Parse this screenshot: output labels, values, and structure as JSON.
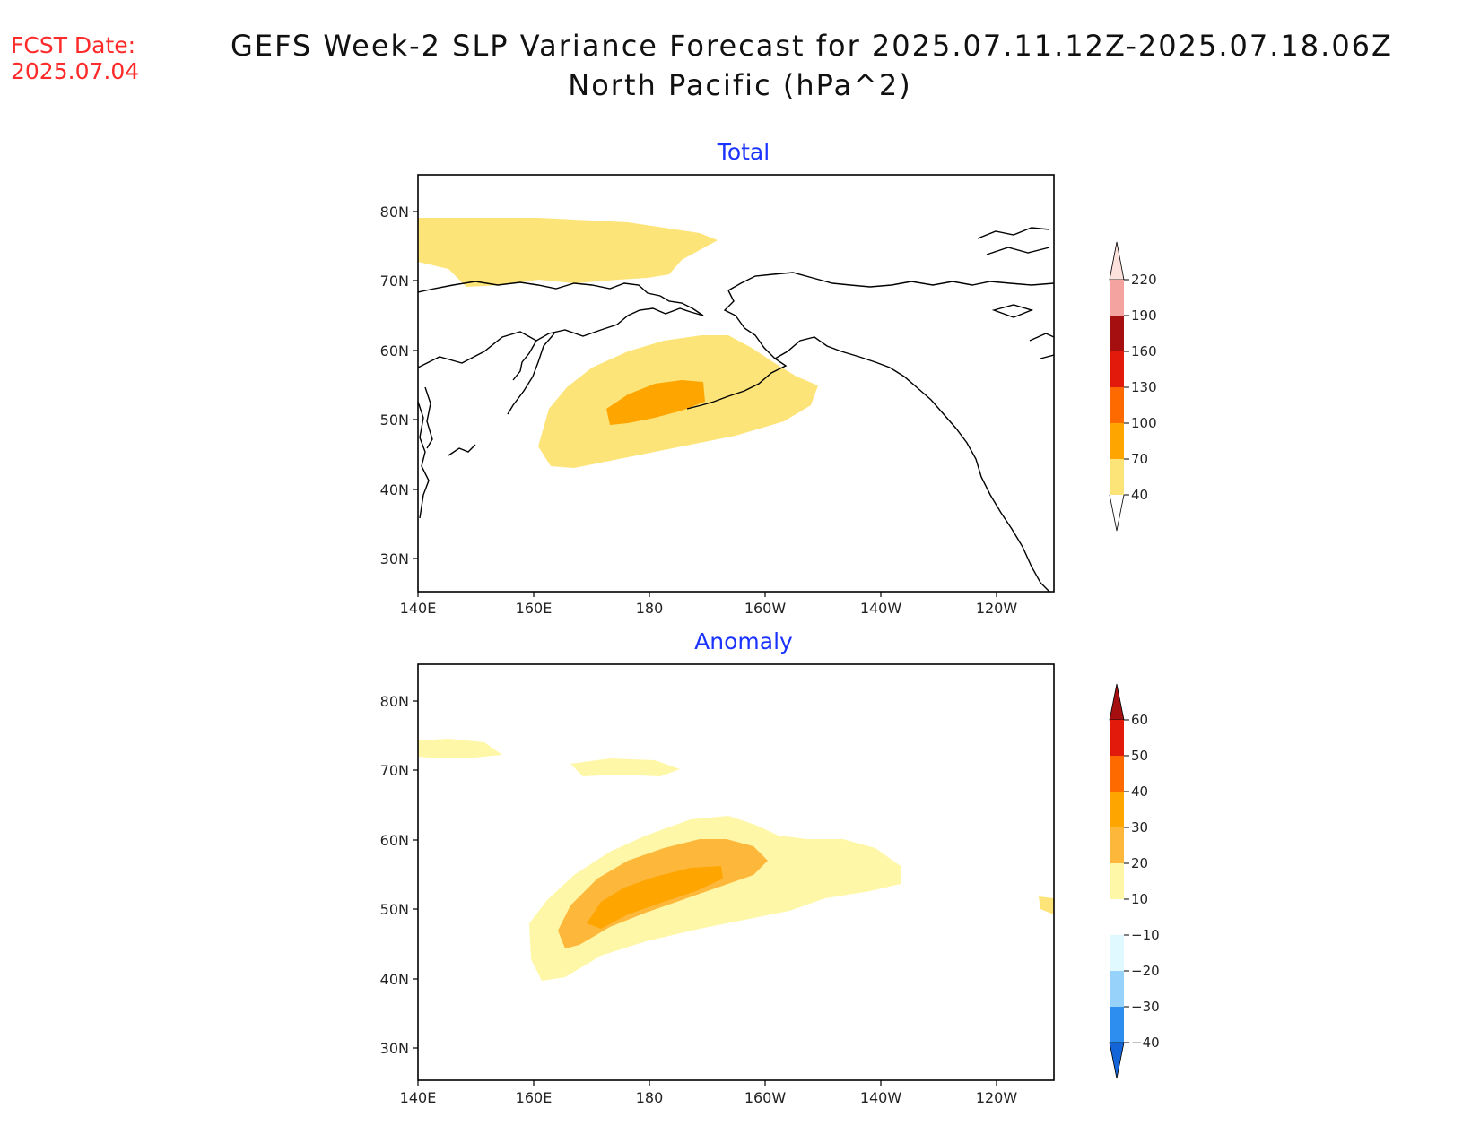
{
  "header": {
    "fcst_label": "FCST Date:",
    "fcst_date": "2025.07.04",
    "title_line1": "GEFS Week-2 SLP Variance Forecast for 2025.07.11.12Z-2025.07.18.06Z",
    "title_line2": "North Pacific (hPa^2)"
  },
  "axes": {
    "lat_labels": [
      "80N",
      "70N",
      "60N",
      "50N",
      "40N",
      "30N"
    ],
    "lon_labels": [
      "140E",
      "160E",
      "180",
      "160W",
      "140W",
      "120W"
    ]
  },
  "panels": [
    {
      "id": "total",
      "title": "Total",
      "colorbar": {
        "labels": [
          "220",
          "190",
          "160",
          "130",
          "100",
          "70",
          "40"
        ],
        "colors": [
          "#fde1dc",
          "#f5a3a0",
          "#a50f0f",
          "#e11a0c",
          "#ff6a00",
          "#ffa500",
          "#fde478"
        ]
      }
    },
    {
      "id": "anomaly",
      "title": "Anomaly",
      "colorbar": {
        "labels": [
          "60",
          "50",
          "40",
          "30",
          "20",
          "10",
          "−10",
          "−20",
          "−30",
          "−40"
        ],
        "colors": [
          "#a50f0f",
          "#e11a0c",
          "#ff6a00",
          "#ffa500",
          "#fdb83c",
          "#fff7a8",
          "#ffffff",
          "#e0f8ff",
          "#96d2fa",
          "#2e8ef0",
          "#1465d8"
        ]
      }
    }
  ],
  "colors": {
    "title_blue": "#1b33ff",
    "fcst_red": "#ff2a2a"
  }
}
